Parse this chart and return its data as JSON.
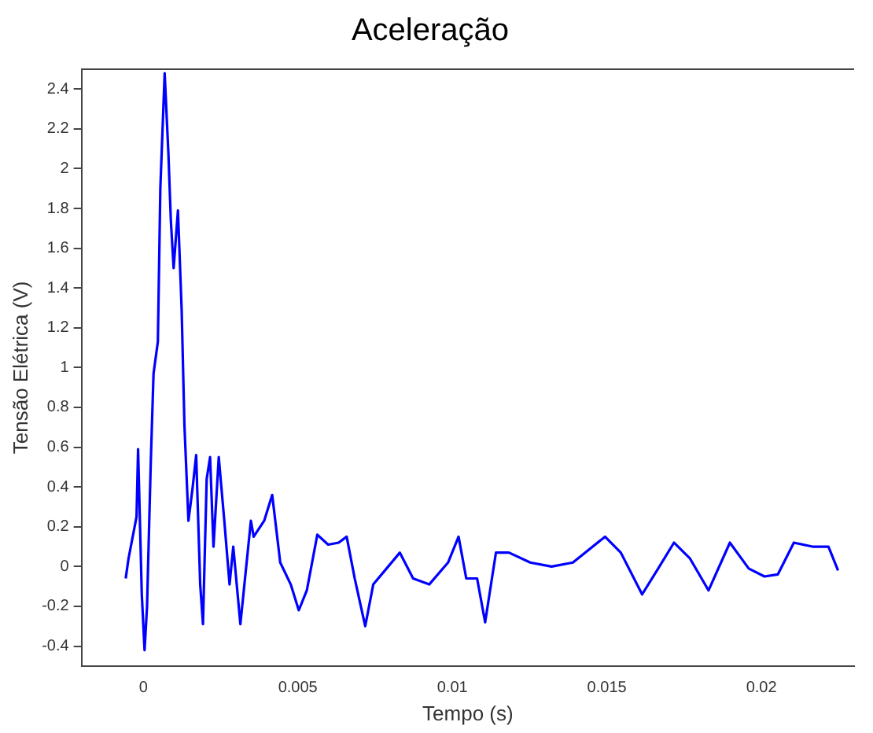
{
  "chart_data": {
    "type": "line",
    "title": "Aceleração",
    "xlabel": "Tempo (s)",
    "ylabel": "Tensão Elétrica (V)",
    "xlim": [
      -0.002,
      0.023
    ],
    "xticks": [
      0,
      0.005,
      0.01,
      0.015,
      0.02
    ],
    "ylim": [
      -0.5,
      2.5
    ],
    "yticks": [
      -0.4,
      -0.2,
      0,
      0.2,
      0.4,
      0.6,
      0.8,
      1,
      1.2,
      1.4,
      1.6,
      1.8,
      2,
      2.2,
      2.4
    ],
    "grid": false,
    "legend": false,
    "marker": "none",
    "line_style": "solid",
    "series": [
      {
        "color": "#0000ff",
        "x": [
          -0.00057,
          -0.00048,
          -0.00022,
          -0.00017,
          -5e-05,
          4e-05,
          0.00012,
          0.00024,
          0.00033,
          0.00047,
          0.00055,
          0.00069,
          0.00081,
          0.00089,
          0.00098,
          0.00112,
          0.00124,
          0.00133,
          0.00146,
          0.00159,
          0.00171,
          0.00184,
          0.00193,
          0.00205,
          0.00216,
          0.00227,
          0.00244,
          0.00262,
          0.00279,
          0.00291,
          0.00314,
          0.00348,
          0.00357,
          0.00391,
          0.00417,
          0.00443,
          0.00477,
          0.00503,
          0.00529,
          0.00563,
          0.00598,
          0.00632,
          0.00658,
          0.00684,
          0.00718,
          0.00744,
          0.00787,
          0.0083,
          0.00873,
          0.00925,
          0.00986,
          0.0102,
          0.01045,
          0.0108,
          0.01106,
          0.01141,
          0.01183,
          0.01252,
          0.01321,
          0.0139,
          0.01494,
          0.01545,
          0.01614,
          0.01666,
          0.01717,
          0.01769,
          0.01829,
          0.01898,
          0.01959,
          0.0201,
          0.02053,
          0.02105,
          0.02165,
          0.02217,
          0.02248
        ],
        "values": [
          -0.06,
          0.04,
          0.25,
          0.59,
          -0.14,
          -0.42,
          -0.2,
          0.52,
          0.97,
          1.13,
          1.9,
          2.48,
          2.08,
          1.74,
          1.5,
          1.79,
          1.29,
          0.71,
          0.23,
          0.39,
          0.56,
          -0.09,
          -0.29,
          0.44,
          0.55,
          0.1,
          0.55,
          0.23,
          -0.09,
          0.1,
          -0.29,
          0.23,
          0.15,
          0.23,
          0.36,
          0.02,
          -0.09,
          -0.22,
          -0.12,
          0.16,
          0.11,
          0.12,
          0.15,
          -0.06,
          -0.3,
          -0.09,
          -0.01,
          0.07,
          -0.06,
          -0.09,
          0.02,
          0.15,
          -0.06,
          -0.06,
          -0.28,
          0.07,
          0.07,
          0.02,
          0,
          0.02,
          0.15,
          0.07,
          -0.14,
          -0.01,
          0.12,
          0.04,
          -0.12,
          0.12,
          -0.01,
          -0.05,
          -0.04,
          0.12,
          0.1,
          0.1,
          -0.02
        ]
      }
    ]
  }
}
